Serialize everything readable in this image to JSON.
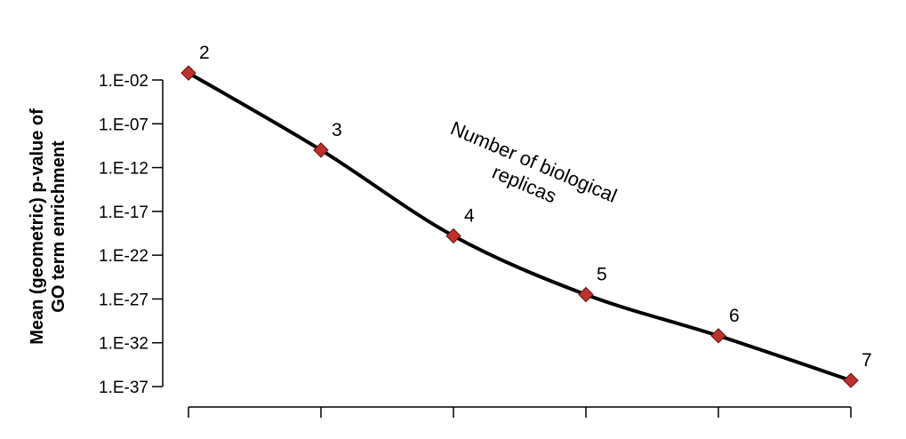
{
  "chart_data": {
    "type": "line",
    "title": "",
    "ylabel_lines": [
      "Mean (geometric) p-value of",
      "GO term enrichment"
    ],
    "xlabel": "",
    "y_scale": "log10",
    "y_ticks": [
      "1.E-02",
      "1.E-07",
      "1.E-12",
      "1.E-17",
      "1.E-22",
      "1.E-27",
      "1.E-32",
      "1.E-37"
    ],
    "y_tick_values": [
      -2,
      -7,
      -12,
      -17,
      -22,
      -27,
      -32,
      -37
    ],
    "ylim_log10": [
      -37,
      -2
    ],
    "x": [
      2,
      3,
      4,
      5,
      6,
      7
    ],
    "point_labels": [
      "2",
      "3",
      "4",
      "5",
      "6",
      "7"
    ],
    "y_log10": [
      -1.2,
      -10,
      -19.8,
      -26.5,
      -31.2,
      -36.3
    ],
    "annotation_lines": [
      "Number of biological",
      "replicas"
    ],
    "marker_color": "#c0302a",
    "line_color": "#000000",
    "grid": false,
    "legend": "none"
  }
}
